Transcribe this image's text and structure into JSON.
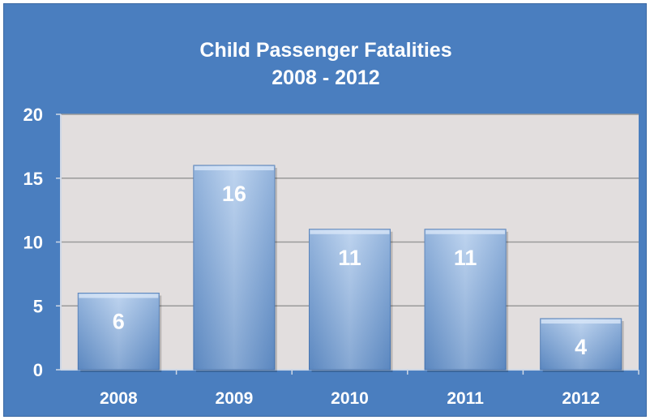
{
  "chart_data": {
    "type": "bar",
    "title": "Child Passenger Fatalities",
    "subtitle": "2008 - 2012",
    "categories": [
      "2008",
      "2009",
      "2010",
      "2011",
      "2012"
    ],
    "values": [
      6,
      16,
      11,
      11,
      4
    ],
    "data_labels": [
      "6",
      "16",
      "11",
      "11",
      "4"
    ],
    "xlabel": "",
    "ylabel": "",
    "ylim": [
      0,
      20
    ],
    "yticks": [
      0,
      5,
      10,
      15,
      20
    ],
    "grid": true,
    "legend": "none",
    "colors": {
      "frame": "#4a7ebf",
      "plot_area": "#e2dede",
      "bar_light": "#a9c6ea",
      "bar_dark": "#5a8ac4",
      "text": "#ffffff",
      "grid": "#9a9a9a"
    }
  }
}
